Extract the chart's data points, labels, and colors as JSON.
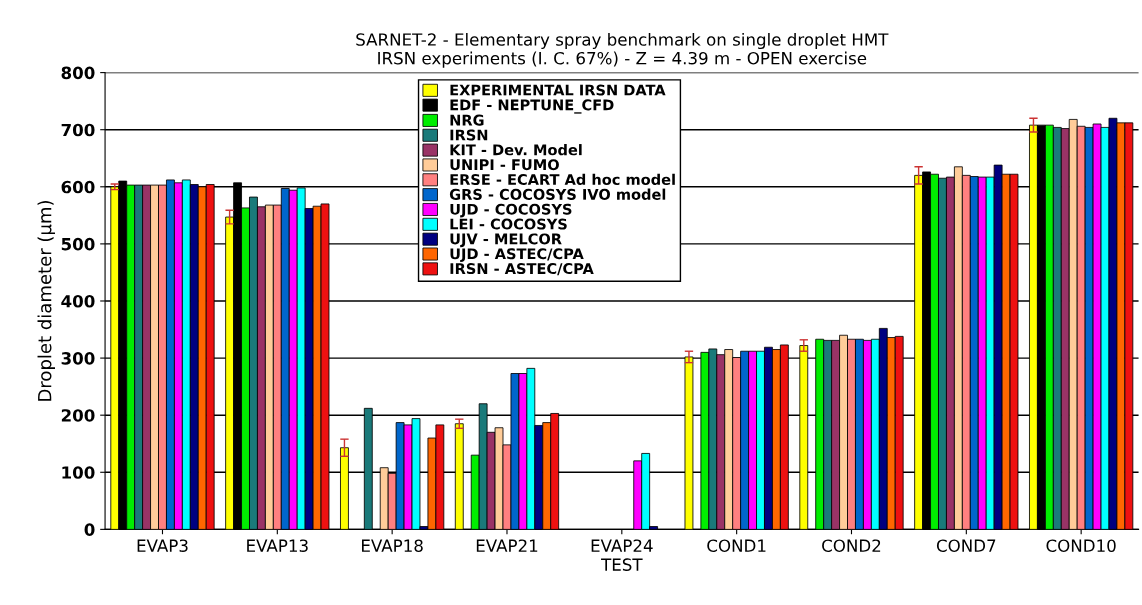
{
  "chart_data": {
    "type": "bar",
    "title": "SARNET-2 - Elementary spray benchmark on single droplet HMT\nIRSN experiments (I. C. 67%) - Z = 4.39 m - OPEN exercise",
    "xlabel": "TEST",
    "ylabel": "Droplet diameter (µm)",
    "categories": [
      "EVAP3",
      "EVAP13",
      "EVAP18",
      "EVAP21",
      "EVAP24",
      "COND1",
      "COND2",
      "COND7",
      "COND10"
    ],
    "ylim": [
      0,
      800
    ],
    "yticks": [
      0,
      100,
      200,
      300,
      400,
      500,
      600,
      700,
      800
    ],
    "grid": "y",
    "legend": "top",
    "series": [
      {
        "name": "EXPERIMENTAL IRSN DATA",
        "color": "#ffff00",
        "values": [
          600,
          547,
          143,
          185,
          null,
          302,
          322,
          620,
          708
        ],
        "errors": [
          5,
          12,
          15,
          8,
          null,
          10,
          10,
          15,
          12
        ]
      },
      {
        "name": "EDF - NEPTUNE_CFD",
        "color": "#000000",
        "values": [
          610,
          607,
          null,
          null,
          null,
          null,
          null,
          626,
          708
        ]
      },
      {
        "name": "NRG",
        "color": "#00ee00",
        "values": [
          603,
          563,
          null,
          130,
          null,
          310,
          333,
          622,
          708
        ]
      },
      {
        "name": "IRSN",
        "color": "#1a7a7a",
        "values": [
          603,
          582,
          212,
          220,
          null,
          316,
          331,
          615,
          704
        ]
      },
      {
        "name": "KIT - Dev. Model",
        "color": "#993366",
        "values": [
          603,
          565,
          null,
          170,
          null,
          306,
          331,
          617,
          702
        ]
      },
      {
        "name": "UNIPI - FUMO",
        "color": "#ffcc99",
        "values": [
          603,
          568,
          108,
          178,
          null,
          315,
          340,
          635,
          718
        ]
      },
      {
        "name": "ERSE - ECART Ad hoc model",
        "color": "#ff8080",
        "values": [
          603,
          568,
          98,
          148,
          null,
          301,
          333,
          620,
          706
        ]
      },
      {
        "name": "GRS - COCOSYS IVO model",
        "color": "#0066cc",
        "values": [
          612,
          597,
          187,
          273,
          null,
          312,
          333,
          618,
          704
        ]
      },
      {
        "name": "UJD - COCOSYS",
        "color": "#ff00ff",
        "values": [
          607,
          594,
          183,
          273,
          120,
          312,
          331,
          617,
          710
        ]
      },
      {
        "name": "LEI - COCOSYS",
        "color": "#00ffff",
        "values": [
          612,
          598,
          194,
          282,
          133,
          312,
          333,
          617,
          704
        ]
      },
      {
        "name": "UJV - MELCOR",
        "color": "#000080",
        "values": [
          604,
          562,
          5,
          182,
          5,
          319,
          352,
          638,
          720
        ]
      },
      {
        "name": "UJD - ASTEC/CPA",
        "color": "#ff6600",
        "values": [
          600,
          566,
          160,
          187,
          null,
          315,
          336,
          622,
          712
        ]
      },
      {
        "name": "IRSN - ASTEC/CPA",
        "color": "#ee1111",
        "values": [
          604,
          570,
          183,
          203,
          null,
          323,
          338,
          622,
          712
        ]
      }
    ]
  }
}
